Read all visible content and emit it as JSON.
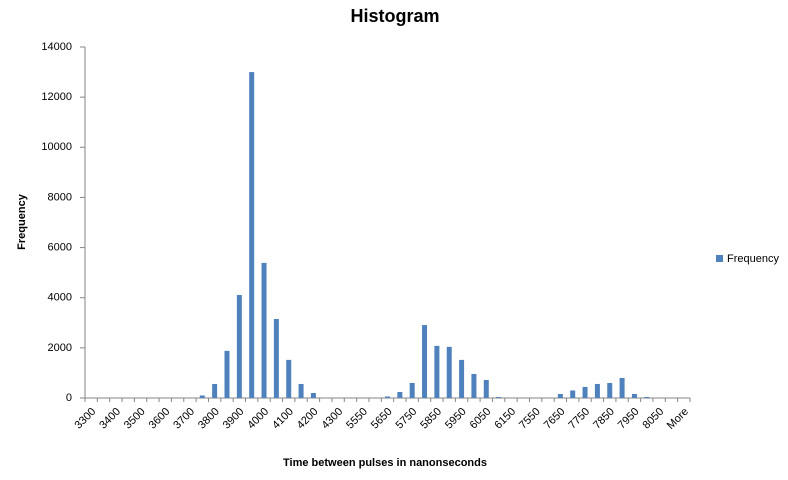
{
  "chart_data": {
    "type": "bar",
    "title": "Histogram",
    "x_label": "Time between pulses in nanonseconds",
    "y_label": "Frequency",
    "categories": [
      "3300",
      null,
      "3400",
      null,
      "3500",
      null,
      "3600",
      null,
      "3700",
      null,
      "3800",
      null,
      "3900",
      null,
      "4000",
      null,
      "4100",
      null,
      "4200",
      null,
      "4300",
      null,
      "5550",
      null,
      "5650",
      null,
      "5750",
      null,
      "5850",
      null,
      "5950",
      null,
      "6050",
      null,
      "6150",
      null,
      "7550",
      null,
      "7650",
      null,
      "7750",
      null,
      "7850",
      null,
      "7950",
      null,
      "8050",
      null,
      "More"
    ],
    "series": [
      {
        "name": "Frequency",
        "color": "#4f81bd",
        "values": [
          0,
          0,
          0,
          0,
          0,
          0,
          0,
          0,
          0,
          100,
          560,
          1880,
          4110,
          13000,
          5390,
          3150,
          1520,
          560,
          200,
          0,
          0,
          0,
          0,
          0,
          60,
          240,
          600,
          2910,
          2080,
          2040,
          1520,
          960,
          720,
          40,
          0,
          0,
          0,
          0,
          160,
          300,
          440,
          560,
          600,
          800,
          160,
          40,
          0,
          0,
          0
        ]
      }
    ],
    "ylim": [
      0,
      14000
    ],
    "yticks": [
      0,
      2000,
      4000,
      6000,
      8000,
      10000,
      12000,
      14000
    ],
    "grid": false,
    "legend": "right"
  }
}
